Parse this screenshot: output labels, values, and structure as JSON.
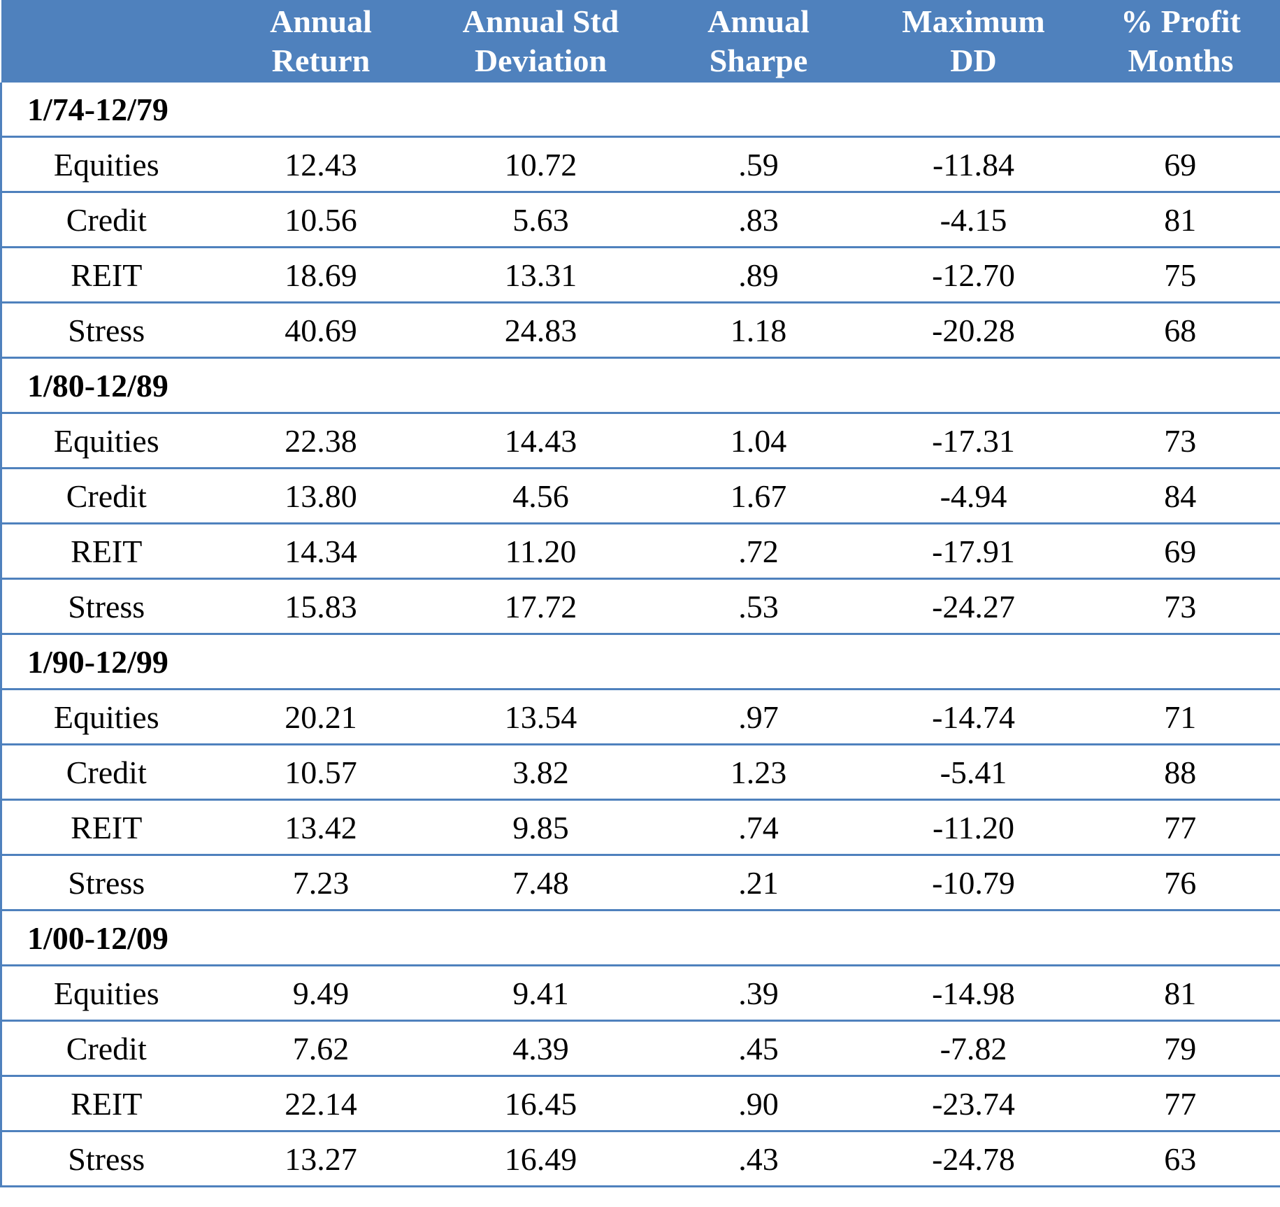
{
  "table": {
    "columns": [
      [
        "Annual",
        "Return"
      ],
      [
        "Annual Std",
        "Deviation"
      ],
      [
        "Annual",
        "Sharpe"
      ],
      [
        "Maximum",
        "DD"
      ],
      [
        "% Profit",
        "Months"
      ]
    ],
    "groups": [
      {
        "period": "1/74-12/79",
        "rows": [
          [
            "Equities",
            "12.43",
            "10.72",
            ".59",
            "-11.84",
            "69"
          ],
          [
            "Credit",
            "10.56",
            "5.63",
            ".83",
            "-4.15",
            "81"
          ],
          [
            "REIT",
            "18.69",
            "13.31",
            ".89",
            "-12.70",
            "75"
          ],
          [
            "Stress",
            "40.69",
            "24.83",
            "1.18",
            "-20.28",
            "68"
          ]
        ]
      },
      {
        "period": "1/80-12/89",
        "rows": [
          [
            "Equities",
            "22.38",
            "14.43",
            "1.04",
            "-17.31",
            "73"
          ],
          [
            "Credit",
            "13.80",
            "4.56",
            "1.67",
            "-4.94",
            "84"
          ],
          [
            "REIT",
            "14.34",
            "11.20",
            ".72",
            "-17.91",
            "69"
          ],
          [
            "Stress",
            "15.83",
            "17.72",
            ".53",
            "-24.27",
            "73"
          ]
        ]
      },
      {
        "period": "1/90-12/99",
        "rows": [
          [
            "Equities",
            "20.21",
            "13.54",
            ".97",
            "-14.74",
            "71"
          ],
          [
            "Credit",
            "10.57",
            "3.82",
            "1.23",
            "-5.41",
            "88"
          ],
          [
            "REIT",
            "13.42",
            "9.85",
            ".74",
            "-11.20",
            "77"
          ],
          [
            "Stress",
            "7.23",
            "7.48",
            ".21",
            "-10.79",
            "76"
          ]
        ]
      },
      {
        "period": "1/00-12/09",
        "rows": [
          [
            "Equities",
            "9.49",
            "9.41",
            ".39",
            "-14.98",
            "81"
          ],
          [
            "Credit",
            "7.62",
            "4.39",
            ".45",
            "-7.82",
            "79"
          ],
          [
            "REIT",
            "22.14",
            "16.45",
            ".90",
            "-23.74",
            "77"
          ],
          [
            "Stress",
            "13.27",
            "16.49",
            ".43",
            "-24.78",
            "63"
          ]
        ]
      }
    ]
  }
}
